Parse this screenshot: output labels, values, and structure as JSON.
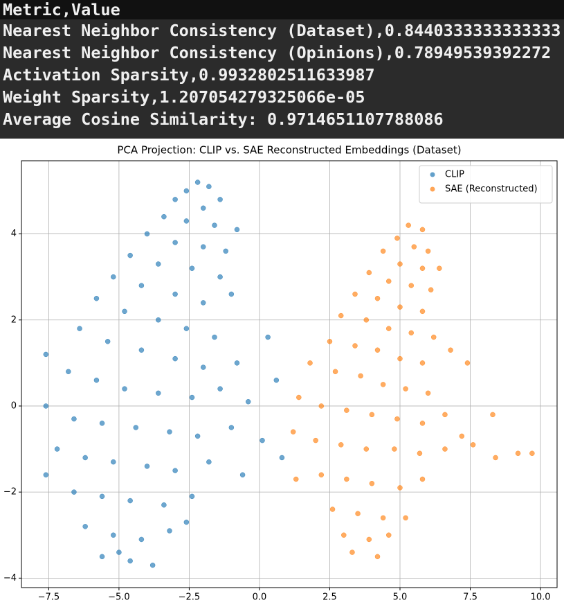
{
  "console": {
    "lines": [
      "Metric,Value",
      "Nearest Neighbor Consistency (Dataset),0.8440333333333333",
      "Nearest Neighbor Consistency (Opinions),0.78949539392272",
      "Activation Sparsity,0.9932802511633987",
      "Weight Sparsity,1.207054279325066e-05",
      "Average Cosine Similarity: 0.9714651107788086"
    ]
  },
  "chart_data": {
    "type": "scatter",
    "title": "PCA Projection: CLIP vs. SAE Reconstructed Embeddings (Dataset)",
    "xlim": [
      -8.47,
      10.59
    ],
    "ylim": [
      -4.22,
      5.7
    ],
    "xticks": [
      {
        "value": -7.5,
        "label": "−7.5"
      },
      {
        "value": -5,
        "label": "−5.0"
      },
      {
        "value": -2.5,
        "label": "−2.5"
      },
      {
        "value": 0,
        "label": "0.0"
      },
      {
        "value": 2.5,
        "label": "2.5"
      },
      {
        "value": 5,
        "label": "5.0"
      },
      {
        "value": 7.5,
        "label": "7.5"
      },
      {
        "value": 10,
        "label": "10.0"
      }
    ],
    "yticks": [
      {
        "value": -4,
        "label": "−4"
      },
      {
        "value": -2,
        "label": "−2"
      },
      0,
      2,
      4
    ],
    "grid": true,
    "legend": "upper right",
    "series": [
      {
        "name": "CLIP",
        "color": "#1f77b4",
        "x": [
          -2.2,
          -2.6,
          -1.8,
          -3.0,
          -2.0,
          -1.4,
          -3.4,
          -2.6,
          -1.6,
          -0.8,
          -4.0,
          -3.0,
          -2.0,
          -1.2,
          -4.6,
          -3.6,
          -2.4,
          -1.4,
          -5.2,
          -4.2,
          -3.0,
          -2.0,
          -1.0,
          -5.8,
          -4.8,
          -3.6,
          -2.6,
          -1.6,
          -6.4,
          -5.4,
          -4.2,
          -3.0,
          -2.0,
          -0.8,
          -7.6,
          -6.8,
          -5.8,
          -4.8,
          -3.6,
          -2.4,
          -1.4,
          -0.4,
          -7.6,
          -6.6,
          -5.6,
          -4.4,
          -3.2,
          -2.2,
          -1.0,
          -7.2,
          -6.2,
          -5.2,
          -4.0,
          -3.0,
          -1.8,
          -0.6,
          -7.6,
          -6.6,
          -5.6,
          -4.6,
          -3.4,
          -2.4,
          -6.2,
          -5.2,
          -4.2,
          -3.2,
          -2.6,
          -5.6,
          -4.6,
          -3.8,
          -5.0,
          0.3,
          0.6,
          0.1,
          0.8
        ],
        "y": [
          5.2,
          5.0,
          5.1,
          4.8,
          4.6,
          4.8,
          4.4,
          4.3,
          4.2,
          4.1,
          4.0,
          3.8,
          3.7,
          3.6,
          3.5,
          3.3,
          3.2,
          3.0,
          3.0,
          2.8,
          2.6,
          2.4,
          2.6,
          2.5,
          2.2,
          2.0,
          1.8,
          1.6,
          1.8,
          1.5,
          1.3,
          1.1,
          0.9,
          1.0,
          1.2,
          0.8,
          0.6,
          0.4,
          0.3,
          0.2,
          0.4,
          0.1,
          0.0,
          -0.3,
          -0.4,
          -0.5,
          -0.6,
          -0.7,
          -0.5,
          -1.0,
          -1.2,
          -1.3,
          -1.4,
          -1.5,
          -1.3,
          -1.6,
          -1.6,
          -2.0,
          -2.1,
          -2.2,
          -2.3,
          -2.1,
          -2.8,
          -3.0,
          -3.1,
          -2.9,
          -2.7,
          -3.5,
          -3.6,
          -3.7,
          -3.4,
          1.6,
          0.6,
          -0.8,
          -1.2
        ]
      },
      {
        "name": "SAE (Reconstructed)",
        "color": "#ff7f0e",
        "x": [
          5.3,
          5.8,
          4.9,
          5.5,
          6.0,
          4.4,
          5.0,
          5.8,
          6.4,
          3.9,
          4.6,
          5.4,
          6.1,
          3.4,
          4.2,
          5.0,
          5.8,
          2.9,
          3.8,
          4.6,
          5.4,
          6.2,
          2.5,
          3.4,
          4.2,
          5.0,
          5.8,
          6.8,
          7.4,
          1.8,
          2.7,
          3.6,
          4.4,
          5.2,
          6.0,
          1.4,
          2.2,
          3.1,
          4.0,
          4.9,
          5.8,
          6.6,
          1.2,
          2.0,
          2.9,
          3.8,
          4.8,
          5.7,
          6.6,
          7.6,
          8.4,
          9.2,
          9.7,
          1.3,
          2.2,
          3.1,
          4.0,
          5.0,
          5.8,
          2.6,
          3.5,
          4.4,
          5.2,
          3.0,
          3.9,
          4.6,
          3.3,
          4.2,
          8.3,
          7.2
        ],
        "y": [
          4.2,
          4.1,
          3.9,
          3.7,
          3.6,
          3.6,
          3.3,
          3.2,
          3.2,
          3.1,
          2.9,
          2.8,
          2.7,
          2.6,
          2.5,
          2.3,
          2.2,
          2.1,
          2.0,
          1.8,
          1.7,
          1.6,
          1.5,
          1.4,
          1.3,
          1.1,
          1.0,
          1.3,
          1.0,
          1.0,
          0.8,
          0.7,
          0.5,
          0.4,
          0.3,
          0.2,
          0.0,
          -0.1,
          -0.2,
          -0.3,
          -0.4,
          -0.2,
          -0.6,
          -0.8,
          -0.9,
          -1.0,
          -1.0,
          -1.1,
          -1.0,
          -0.9,
          -1.2,
          -1.1,
          -1.1,
          -1.7,
          -1.6,
          -1.7,
          -1.8,
          -1.9,
          -1.7,
          -2.4,
          -2.5,
          -2.6,
          -2.6,
          -3.0,
          -3.1,
          -3.0,
          -3.4,
          -3.5,
          -0.2,
          -0.7
        ]
      }
    ]
  }
}
